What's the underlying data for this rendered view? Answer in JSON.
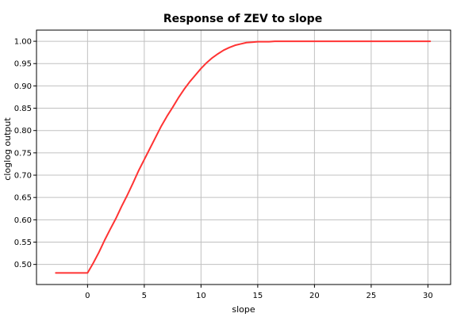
{
  "chart_data": {
    "type": "line",
    "title": "Response of ZEV to slope",
    "xlabel": "slope",
    "ylabel": "cloglog output",
    "xlim": [
      -4.5,
      32
    ],
    "ylim": [
      0.455,
      1.025
    ],
    "x_ticks": [
      0,
      5,
      10,
      15,
      20,
      25,
      30
    ],
    "y_ticks": [
      0.5,
      0.55,
      0.6,
      0.65,
      0.7,
      0.75,
      0.8,
      0.85,
      0.9,
      0.95,
      1.0
    ],
    "grid": true,
    "colors": {
      "line": "#ff3333",
      "grid": "#c0c0c0",
      "axis": "#000000"
    },
    "series": [
      {
        "x": [
          -2.8,
          -2,
          -1,
          0,
          0.5,
          1,
          1.5,
          2,
          2.5,
          3,
          3.5,
          4,
          4.5,
          5,
          5.5,
          6,
          6.5,
          7,
          7.5,
          8,
          8.5,
          9,
          9.5,
          10,
          10.5,
          11,
          11.5,
          12,
          12.5,
          13,
          13.5,
          14,
          14.5,
          15,
          16,
          16.5,
          18,
          20,
          22,
          25,
          28,
          30.2
        ],
        "y": [
          0.481,
          0.481,
          0.481,
          0.481,
          0.503,
          0.527,
          0.554,
          0.579,
          0.603,
          0.63,
          0.655,
          0.682,
          0.71,
          0.735,
          0.76,
          0.785,
          0.81,
          0.832,
          0.852,
          0.873,
          0.892,
          0.909,
          0.924,
          0.939,
          0.952,
          0.963,
          0.972,
          0.98,
          0.986,
          0.991,
          0.994,
          0.997,
          0.998,
          0.999,
          0.999,
          1.0,
          1.0,
          1.0,
          1.0,
          1.0,
          1.0,
          1.0
        ]
      }
    ]
  }
}
